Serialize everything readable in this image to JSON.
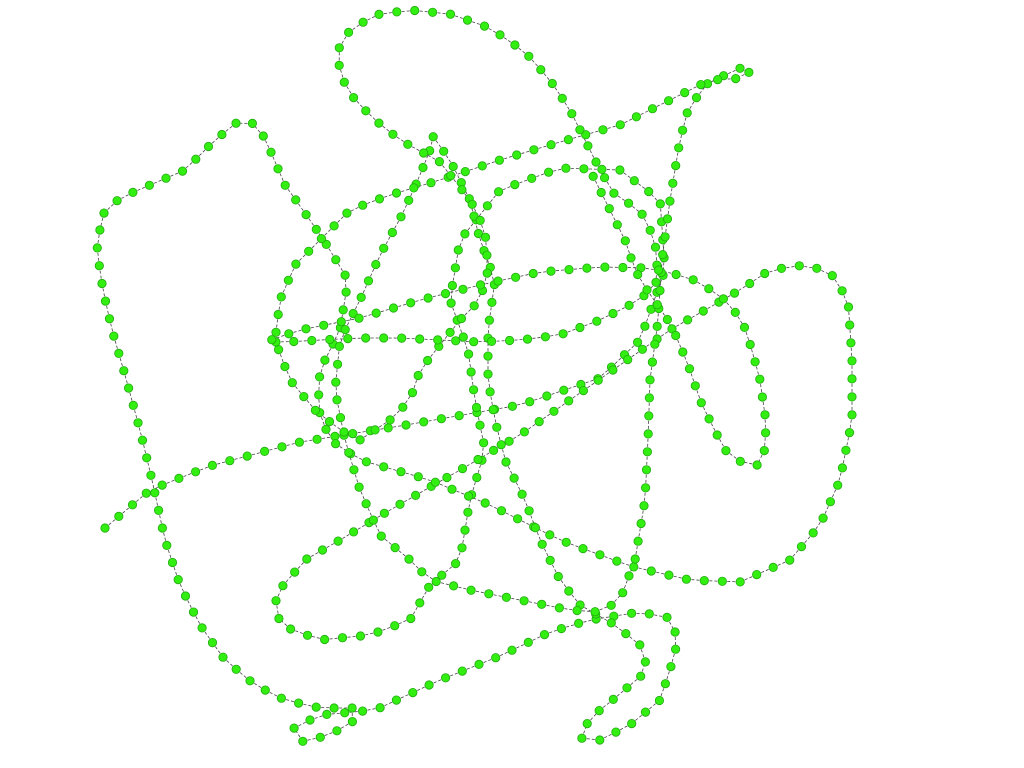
{
  "diagram": {
    "type": "node-chain-graph",
    "description_visible_text": "",
    "node_color": "#33ee11",
    "node_stroke_color": "#22aa11",
    "edge_color": "#444444",
    "background_color": "#ffffff"
  }
}
